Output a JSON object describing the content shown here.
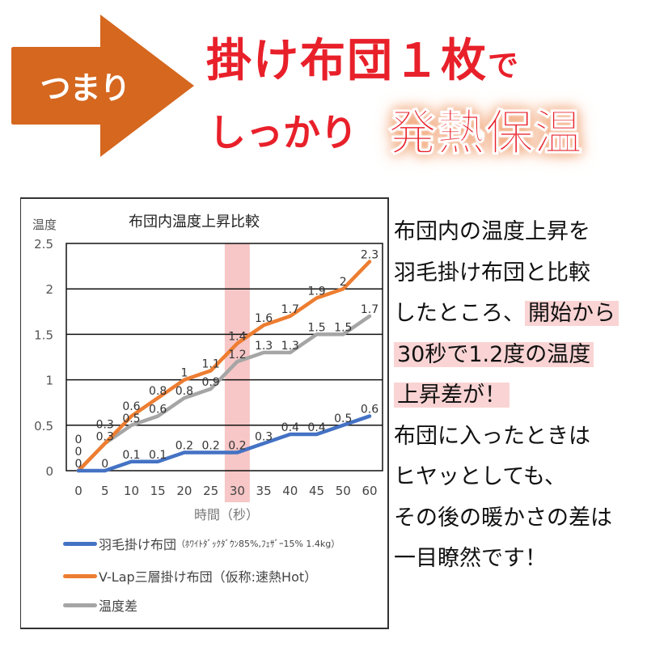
{
  "banner": {
    "arrow_label": "つまり",
    "line1_main": "掛け布団１枚",
    "line1_suffix": "で",
    "line2": "しっかり",
    "line2_emphasis": "発熱保温",
    "colors": {
      "arrow": "#d5671f",
      "headline": "#e8202a"
    }
  },
  "chart_data": {
    "type": "line",
    "title": "布団内温度上昇比較",
    "ylabel": "温度",
    "xlabel": "時間（秒）",
    "categories": [
      "0",
      "5",
      "10",
      "15",
      "20",
      "25",
      "30",
      "35",
      "40",
      "45",
      "50",
      "60"
    ],
    "ylim": [
      0,
      2.5
    ],
    "yticks": [
      "0",
      "0.5",
      "1",
      "1.5",
      "2",
      "2.5"
    ],
    "grid": true,
    "highlight_category": "30",
    "legend_position": "bottom",
    "series": [
      {
        "name": "羽毛掛け布団",
        "name_note": "（ﾎﾜｲﾄﾀﾞｯｸﾀﾞｳﾝ85%,ﾌｪｻﾞｰ15% 1.4kg）",
        "color": "#4472c4",
        "values": [
          0,
          0,
          0.1,
          0.1,
          0.2,
          0.2,
          0.2,
          0.3,
          0.4,
          0.4,
          0.5,
          0.6
        ]
      },
      {
        "name": "V-Lap三層掛け布団（仮称:速熱Hot）",
        "color": "#ed7d31",
        "values": [
          0,
          0.3,
          0.6,
          0.8,
          1,
          1.1,
          1.4,
          1.6,
          1.7,
          1.9,
          2,
          2.3
        ]
      },
      {
        "name": "温度差",
        "color": "#a5a5a5",
        "values": [
          0,
          0.3,
          0.5,
          0.6,
          0.8,
          0.9,
          1.2,
          1.3,
          1.3,
          1.5,
          1.5,
          1.7
        ]
      }
    ]
  },
  "description": {
    "lines": [
      {
        "text": "布団内の温度上昇を"
      },
      {
        "text": "羽毛掛け布団と比較"
      },
      {
        "text": "したところ、",
        "highlight": "開始から"
      },
      {
        "highlight": "30秒で1.2度の温度"
      },
      {
        "highlight": "上昇差が！"
      },
      {
        "text": "布団に入ったときは"
      },
      {
        "text": "ヒヤッとしても、"
      },
      {
        "text": "その後の暖かさの差は"
      },
      {
        "text": "一目瞭然です！"
      }
    ],
    "highlight_color": "#fad4d4"
  }
}
